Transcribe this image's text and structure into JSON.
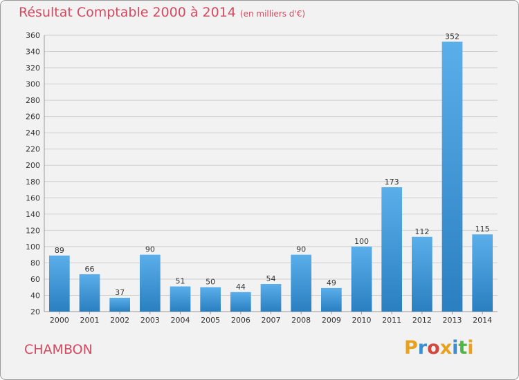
{
  "header": {
    "title": "Résultat Comptable 2000 à 2014",
    "unit": "(en milliers d'€)"
  },
  "commune": "CHAMBON",
  "logo": {
    "letters": [
      "P",
      "r",
      "o",
      "x",
      "i",
      "t",
      "i"
    ],
    "colors": [
      "#e9a21d",
      "#3b8fd0",
      "#d3473c",
      "#e9a21d",
      "#3b8fd0",
      "#4fb748",
      "#e9a21d"
    ]
  },
  "colors": {
    "bar_light": "#5aaeea",
    "bar_dark": "#2a7fc0",
    "title": "#d24a5f",
    "background": "#f2f2f2"
  },
  "chart_data": {
    "type": "bar",
    "title": "Résultat Comptable 2000 à 2014",
    "xlabel": "",
    "ylabel": "",
    "categories": [
      "2000",
      "2001",
      "2002",
      "2003",
      "2004",
      "2005",
      "2006",
      "2007",
      "2008",
      "2009",
      "2010",
      "2011",
      "2012",
      "2013",
      "2014"
    ],
    "values": [
      89,
      66,
      37,
      90,
      51,
      50,
      44,
      54,
      90,
      49,
      100,
      173,
      112,
      352,
      115
    ],
    "ylim": [
      20,
      360
    ],
    "yticks": [
      20,
      40,
      60,
      80,
      100,
      120,
      140,
      160,
      180,
      200,
      220,
      240,
      260,
      280,
      300,
      320,
      340,
      360
    ],
    "grid": true
  }
}
